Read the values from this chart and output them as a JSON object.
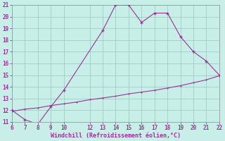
{
  "line1_x": [
    6,
    7,
    8,
    9,
    10,
    13,
    14,
    15,
    16,
    17,
    18,
    19,
    20,
    21,
    22
  ],
  "line1_y": [
    12.0,
    11.2,
    10.8,
    12.3,
    13.7,
    18.8,
    21.0,
    21.0,
    19.5,
    20.3,
    20.3,
    18.3,
    17.0,
    16.2,
    15.0
  ],
  "line2_x": [
    6,
    7,
    8,
    9,
    10,
    11,
    12,
    13,
    14,
    15,
    16,
    17,
    18,
    19,
    20,
    21,
    22
  ],
  "line2_y": [
    11.9,
    12.1,
    12.2,
    12.4,
    12.55,
    12.7,
    12.9,
    13.05,
    13.2,
    13.4,
    13.55,
    13.7,
    13.9,
    14.1,
    14.35,
    14.6,
    14.95
  ],
  "line_color": "#993399",
  "bg_color": "#c8eee8",
  "grid_color": "#a0ccc0",
  "xlabel": "Windchill (Refroidissement éolien,°C)",
  "xlim": [
    6,
    22
  ],
  "ylim": [
    11,
    21
  ],
  "xticks": [
    6,
    7,
    8,
    9,
    10,
    12,
    13,
    14,
    15,
    16,
    17,
    18,
    19,
    20,
    21,
    22
  ],
  "yticks": [
    11,
    12,
    13,
    14,
    15,
    16,
    17,
    18,
    19,
    20,
    21
  ],
  "xlabel_color": "#993399",
  "tick_color": "#993399",
  "axis_color": "#999999"
}
